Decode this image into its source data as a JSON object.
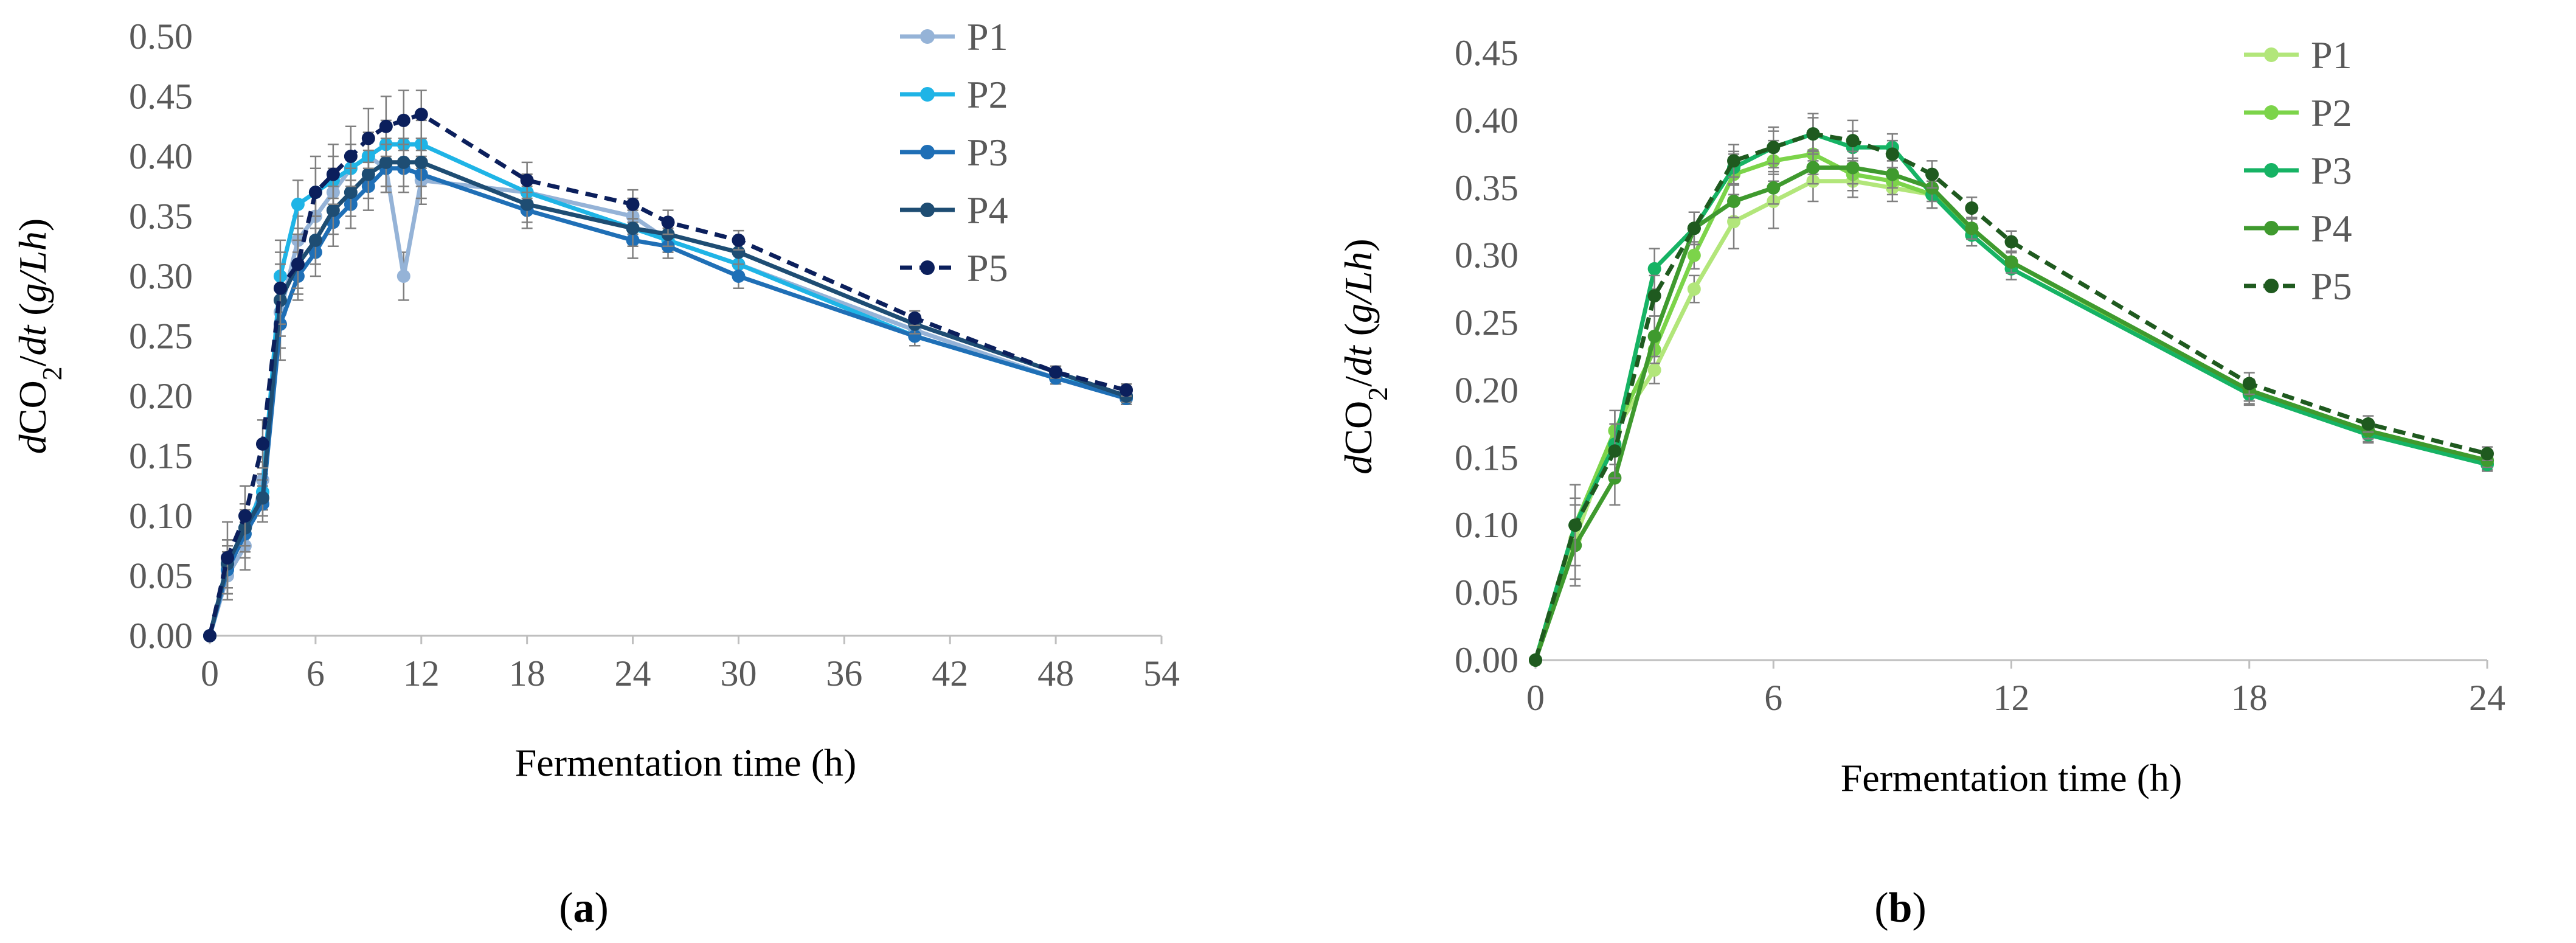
{
  "chart_data": [
    {
      "type": "line",
      "panel_label": [
        "(",
        "a",
        ")"
      ],
      "xlabel": "Fermentation time (h)",
      "ylabel": [
        "d",
        "CO",
        "2",
        "/",
        "dt",
        " (",
        "g/Lh",
        ")"
      ],
      "xlim": [
        0,
        54
      ],
      "ylim": [
        0,
        0.5
      ],
      "x_ticks": [
        "0",
        "6",
        "12",
        "18",
        "24",
        "30",
        "36",
        "42",
        "48",
        "54"
      ],
      "y_ticks": [
        "0.00",
        "0.05",
        "0.10",
        "0.15",
        "0.20",
        "0.25",
        "0.30",
        "0.35",
        "0.40",
        "0.45",
        "0.50"
      ],
      "grid": false,
      "legend_position": "top-right",
      "error_bars": true,
      "series": [
        {
          "name": "P1",
          "color": "#95b3d7",
          "dashed": false,
          "x": [
            0,
            1,
            2,
            3,
            4,
            5,
            6,
            7,
            8,
            9,
            10,
            11,
            12,
            18,
            24,
            26,
            30,
            40,
            48,
            52
          ],
          "y": [
            0,
            0.05,
            0.075,
            0.13,
            0.27,
            0.33,
            0.35,
            0.37,
            0.39,
            0.4,
            0.39,
            0.3,
            0.38,
            0.37,
            0.35,
            0.33,
            0.31,
            0.255,
            0.215,
            0.2
          ],
          "err": [
            0,
            0.02,
            0.02,
            0.015,
            0.03,
            0.02,
            0.02,
            0.02,
            0.02,
            0.02,
            0.02,
            0.02,
            0.02,
            0.015,
            0.015,
            0.01,
            0.01,
            0.008,
            0.005,
            0.005
          ]
        },
        {
          "name": "P2",
          "color": "#1fb4e6",
          "dashed": false,
          "x": [
            0,
            1,
            2,
            3,
            4,
            5,
            6,
            7,
            8,
            9,
            10,
            11,
            12,
            18,
            24,
            26,
            30,
            40,
            48,
            52
          ],
          "y": [
            0,
            0.06,
            0.09,
            0.12,
            0.3,
            0.36,
            0.37,
            0.38,
            0.39,
            0.4,
            0.41,
            0.41,
            0.41,
            0.37,
            0.34,
            0.33,
            0.31,
            0.25,
            0.215,
            0.2
          ],
          "err": [
            0,
            0.02,
            0.02,
            0.015,
            0.03,
            0.02,
            0.02,
            0.02,
            0.02,
            0.02,
            0.02,
            0.02,
            0.02,
            0.015,
            0.015,
            0.01,
            0.01,
            0.008,
            0.005,
            0.005
          ]
        },
        {
          "name": "P3",
          "color": "#1f6fb6",
          "dashed": false,
          "x": [
            0,
            1,
            2,
            3,
            4,
            5,
            6,
            7,
            8,
            9,
            10,
            11,
            12,
            18,
            24,
            26,
            30,
            40,
            48,
            52
          ],
          "y": [
            0,
            0.055,
            0.085,
            0.11,
            0.26,
            0.3,
            0.32,
            0.345,
            0.36,
            0.375,
            0.39,
            0.39,
            0.385,
            0.355,
            0.33,
            0.325,
            0.3,
            0.25,
            0.215,
            0.198
          ],
          "err": [
            0,
            0.02,
            0.02,
            0.015,
            0.03,
            0.02,
            0.02,
            0.02,
            0.02,
            0.02,
            0.02,
            0.02,
            0.02,
            0.015,
            0.015,
            0.01,
            0.01,
            0.008,
            0.005,
            0.005
          ]
        },
        {
          "name": "P4",
          "color": "#1e4d73",
          "dashed": false,
          "x": [
            0,
            1,
            2,
            3,
            4,
            5,
            6,
            7,
            8,
            9,
            10,
            11,
            12,
            18,
            24,
            26,
            30,
            40,
            48,
            52
          ],
          "y": [
            0,
            0.06,
            0.09,
            0.115,
            0.28,
            0.31,
            0.33,
            0.355,
            0.37,
            0.385,
            0.395,
            0.395,
            0.395,
            0.36,
            0.34,
            0.335,
            0.32,
            0.26,
            0.22,
            0.2
          ],
          "err": [
            0,
            0.02,
            0.02,
            0.015,
            0.03,
            0.02,
            0.02,
            0.02,
            0.02,
            0.02,
            0.02,
            0.02,
            0.02,
            0.015,
            0.015,
            0.01,
            0.01,
            0.008,
            0.005,
            0.005
          ]
        },
        {
          "name": "P5",
          "color": "#0b1f5c",
          "dashed": true,
          "x": [
            0,
            1,
            2,
            3,
            4,
            5,
            6,
            7,
            8,
            9,
            10,
            11,
            12,
            18,
            24,
            26,
            30,
            40,
            48,
            52
          ],
          "y": [
            0,
            0.065,
            0.1,
            0.16,
            0.29,
            0.31,
            0.37,
            0.385,
            0.4,
            0.415,
            0.425,
            0.43,
            0.435,
            0.38,
            0.36,
            0.345,
            0.33,
            0.265,
            0.22,
            0.205
          ],
          "err": [
            0,
            0.03,
            0.025,
            0.02,
            0.03,
            0.025,
            0.03,
            0.025,
            0.025,
            0.025,
            0.025,
            0.025,
            0.02,
            0.015,
            0.012,
            0.01,
            0.008,
            0.006,
            0.005,
            0.005
          ]
        }
      ]
    },
    {
      "type": "line",
      "panel_label": [
        "(",
        "b",
        ")"
      ],
      "xlabel": "Fermentation time (h)",
      "ylabel": [
        "d",
        "CO",
        "2",
        "/",
        "dt",
        " (",
        "g/Lh",
        ")"
      ],
      "xlim": [
        0,
        24
      ],
      "ylim": [
        0,
        0.45
      ],
      "x_ticks": [
        "0",
        "6",
        "12",
        "18",
        "24"
      ],
      "y_ticks": [
        "0.00",
        "0.05",
        "0.10",
        "0.15",
        "0.20",
        "0.25",
        "0.30",
        "0.35",
        "0.40",
        "0.45"
      ],
      "grid": false,
      "legend_position": "top-right",
      "error_bars": true,
      "series": [
        {
          "name": "P1",
          "color": "#b2e67a",
          "dashed": false,
          "x": [
            0,
            1,
            2,
            3,
            4,
            5,
            6,
            7,
            8,
            9,
            10,
            11,
            12,
            18,
            21,
            24
          ],
          "y": [
            0,
            0.09,
            0.17,
            0.215,
            0.275,
            0.325,
            0.34,
            0.355,
            0.355,
            0.35,
            0.345,
            0.32,
            0.295,
            0.2,
            0.17,
            0.148
          ],
          "err": [
            0,
            0.03,
            0.015,
            0.01,
            0.01,
            0.02,
            0.02,
            0.015,
            0.012,
            0.01,
            0.01,
            0.008,
            0.008,
            0.008,
            0.006,
            0.005
          ]
        },
        {
          "name": "P2",
          "color": "#7cd44a",
          "dashed": false,
          "x": [
            0,
            1,
            2,
            3,
            4,
            5,
            6,
            7,
            8,
            9,
            10,
            11,
            12,
            18,
            21,
            24
          ],
          "y": [
            0,
            0.1,
            0.17,
            0.23,
            0.3,
            0.36,
            0.37,
            0.375,
            0.36,
            0.355,
            0.345,
            0.32,
            0.295,
            0.198,
            0.168,
            0.146
          ],
          "err": [
            0,
            0.03,
            0.015,
            0.01,
            0.01,
            0.015,
            0.015,
            0.015,
            0.012,
            0.01,
            0.01,
            0.008,
            0.008,
            0.008,
            0.006,
            0.005
          ]
        },
        {
          "name": "P3",
          "color": "#16b364",
          "dashed": false,
          "x": [
            0,
            1,
            2,
            3,
            4,
            5,
            6,
            7,
            8,
            9,
            10,
            11,
            12,
            18,
            21,
            24
          ],
          "y": [
            0,
            0.1,
            0.16,
            0.29,
            0.32,
            0.365,
            0.38,
            0.39,
            0.38,
            0.38,
            0.345,
            0.315,
            0.29,
            0.197,
            0.167,
            0.145
          ],
          "err": [
            0,
            0.03,
            0.015,
            0.015,
            0.012,
            0.012,
            0.012,
            0.012,
            0.012,
            0.01,
            0.01,
            0.008,
            0.008,
            0.008,
            0.006,
            0.005
          ]
        },
        {
          "name": "P4",
          "color": "#3f9a2e",
          "dashed": false,
          "x": [
            0,
            1,
            2,
            3,
            4,
            5,
            6,
            7,
            8,
            9,
            10,
            11,
            12,
            18,
            21,
            24
          ],
          "y": [
            0,
            0.085,
            0.135,
            0.24,
            0.32,
            0.34,
            0.35,
            0.365,
            0.365,
            0.36,
            0.35,
            0.32,
            0.295,
            0.2,
            0.17,
            0.148
          ],
          "err": [
            0,
            0.03,
            0.02,
            0.015,
            0.012,
            0.012,
            0.012,
            0.012,
            0.012,
            0.01,
            0.01,
            0.008,
            0.008,
            0.008,
            0.006,
            0.005
          ]
        },
        {
          "name": "P5",
          "color": "#1f5a1f",
          "dashed": true,
          "x": [
            0,
            1,
            2,
            3,
            4,
            5,
            6,
            7,
            8,
            9,
            10,
            11,
            12,
            18,
            21,
            24
          ],
          "y": [
            0,
            0.1,
            0.155,
            0.27,
            0.32,
            0.37,
            0.38,
            0.39,
            0.385,
            0.375,
            0.36,
            0.335,
            0.31,
            0.205,
            0.175,
            0.153
          ],
          "err": [
            0,
            0.03,
            0.02,
            0.015,
            0.012,
            0.012,
            0.015,
            0.015,
            0.015,
            0.01,
            0.01,
            0.008,
            0.008,
            0.008,
            0.006,
            0.005
          ]
        }
      ]
    }
  ]
}
